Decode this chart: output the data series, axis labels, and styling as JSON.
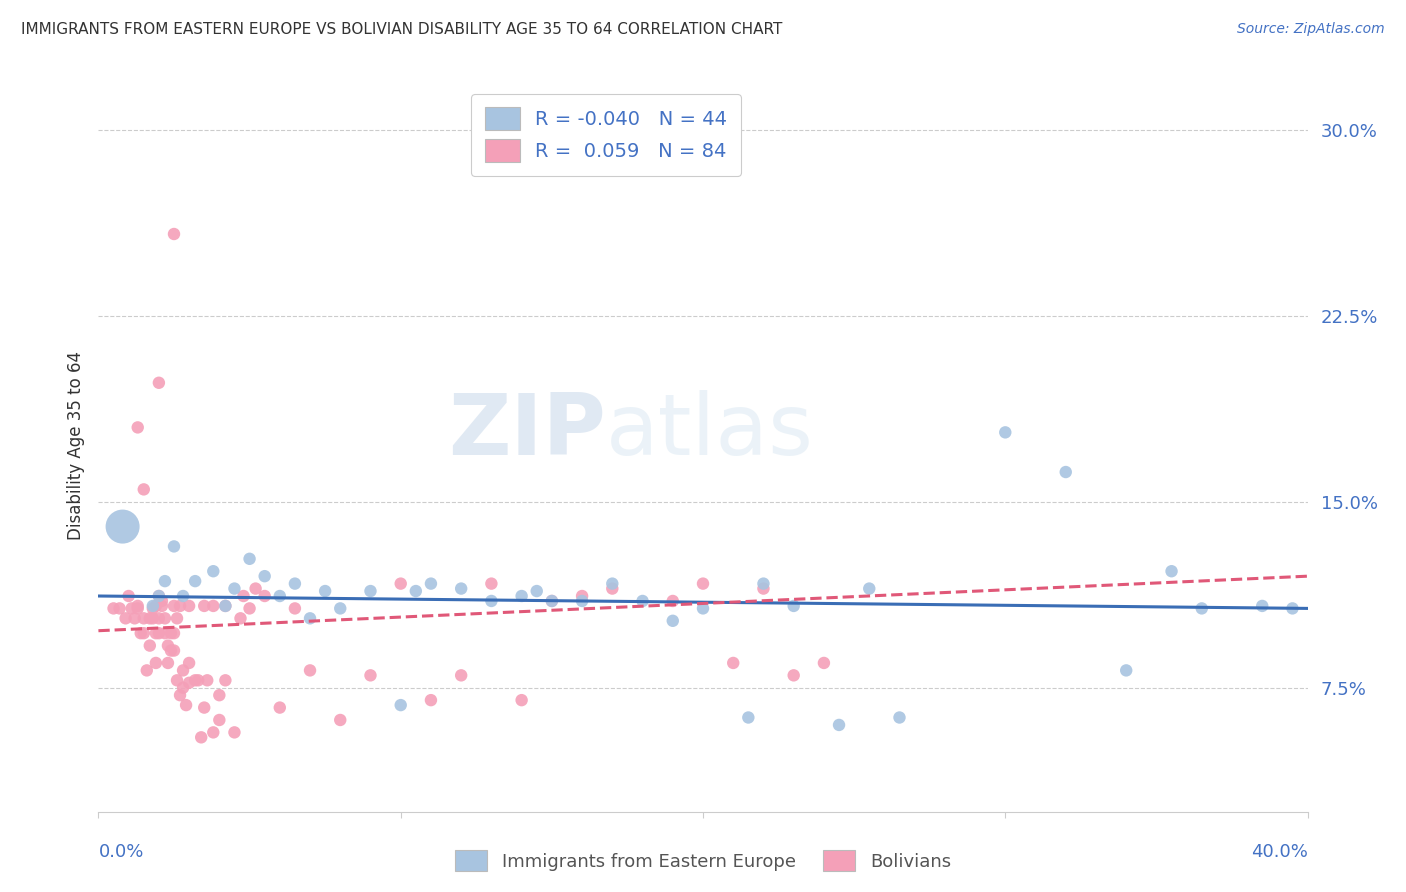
{
  "title": "IMMIGRANTS FROM EASTERN EUROPE VS BOLIVIAN DISABILITY AGE 35 TO 64 CORRELATION CHART",
  "source": "Source: ZipAtlas.com",
  "ylabel": "Disability Age 35 to 64",
  "ytick_labels": [
    "7.5%",
    "15.0%",
    "22.5%",
    "30.0%"
  ],
  "ytick_values": [
    0.075,
    0.15,
    0.225,
    0.3
  ],
  "xlim": [
    0.0,
    0.4
  ],
  "ylim": [
    0.025,
    0.32
  ],
  "blue_R": "-0.040",
  "blue_N": "44",
  "pink_R": "0.059",
  "pink_N": "84",
  "legend_label_blue": "Immigrants from Eastern Europe",
  "legend_label_pink": "Bolivians",
  "blue_color": "#a8c4e0",
  "pink_color": "#f4a0b8",
  "blue_line_color": "#3a6db5",
  "pink_line_color": "#e05878",
  "watermark_1": "ZIP",
  "watermark_2": "atlas",
  "blue_line_x": [
    0.0,
    0.4
  ],
  "blue_line_y": [
    0.112,
    0.107
  ],
  "pink_line_x": [
    0.0,
    0.4
  ],
  "pink_line_y": [
    0.098,
    0.12
  ],
  "blue_scatter_x": [
    0.008,
    0.018,
    0.02,
    0.022,
    0.025,
    0.028,
    0.032,
    0.038,
    0.042,
    0.045,
    0.05,
    0.055,
    0.06,
    0.065,
    0.07,
    0.075,
    0.08,
    0.09,
    0.1,
    0.105,
    0.11,
    0.12,
    0.13,
    0.14,
    0.145,
    0.15,
    0.16,
    0.17,
    0.18,
    0.19,
    0.2,
    0.215,
    0.22,
    0.23,
    0.245,
    0.255,
    0.265,
    0.3,
    0.32,
    0.34,
    0.355,
    0.365,
    0.385,
    0.395
  ],
  "blue_scatter_y": [
    0.14,
    0.108,
    0.112,
    0.118,
    0.132,
    0.112,
    0.118,
    0.122,
    0.108,
    0.115,
    0.127,
    0.12,
    0.112,
    0.117,
    0.103,
    0.114,
    0.107,
    0.114,
    0.068,
    0.114,
    0.117,
    0.115,
    0.11,
    0.112,
    0.114,
    0.11,
    0.11,
    0.117,
    0.11,
    0.102,
    0.107,
    0.063,
    0.117,
    0.108,
    0.06,
    0.115,
    0.063,
    0.178,
    0.162,
    0.082,
    0.122,
    0.107,
    0.108,
    0.107
  ],
  "blue_scatter_size": [
    600,
    80,
    80,
    80,
    80,
    80,
    80,
    80,
    80,
    80,
    80,
    80,
    80,
    80,
    80,
    80,
    80,
    80,
    80,
    80,
    80,
    80,
    80,
    80,
    80,
    80,
    80,
    80,
    80,
    80,
    80,
    80,
    80,
    80,
    80,
    80,
    80,
    80,
    80,
    80,
    80,
    80,
    80,
    80
  ],
  "pink_scatter_x": [
    0.005,
    0.007,
    0.009,
    0.01,
    0.011,
    0.012,
    0.013,
    0.013,
    0.014,
    0.015,
    0.015,
    0.016,
    0.017,
    0.017,
    0.018,
    0.018,
    0.019,
    0.019,
    0.019,
    0.02,
    0.02,
    0.02,
    0.021,
    0.021,
    0.022,
    0.022,
    0.023,
    0.023,
    0.024,
    0.024,
    0.025,
    0.025,
    0.026,
    0.026,
    0.027,
    0.028,
    0.028,
    0.029,
    0.03,
    0.03,
    0.032,
    0.033,
    0.034,
    0.035,
    0.036,
    0.038,
    0.04,
    0.04,
    0.042,
    0.045,
    0.047,
    0.05,
    0.055,
    0.06,
    0.065,
    0.07,
    0.08,
    0.09,
    0.1,
    0.11,
    0.12,
    0.13,
    0.14,
    0.15,
    0.16,
    0.17,
    0.19,
    0.2,
    0.21,
    0.22,
    0.23,
    0.24,
    0.025,
    0.027,
    0.03,
    0.035,
    0.038,
    0.042,
    0.048,
    0.052,
    0.013,
    0.015,
    0.02,
    0.025
  ],
  "pink_scatter_y": [
    0.107,
    0.107,
    0.103,
    0.112,
    0.107,
    0.103,
    0.107,
    0.108,
    0.097,
    0.097,
    0.103,
    0.082,
    0.092,
    0.103,
    0.103,
    0.107,
    0.085,
    0.097,
    0.108,
    0.097,
    0.103,
    0.112,
    0.11,
    0.108,
    0.097,
    0.103,
    0.085,
    0.092,
    0.09,
    0.097,
    0.09,
    0.097,
    0.103,
    0.078,
    0.072,
    0.075,
    0.082,
    0.068,
    0.077,
    0.085,
    0.078,
    0.078,
    0.055,
    0.067,
    0.078,
    0.057,
    0.062,
    0.072,
    0.078,
    0.057,
    0.103,
    0.107,
    0.112,
    0.067,
    0.107,
    0.082,
    0.062,
    0.08,
    0.117,
    0.07,
    0.08,
    0.117,
    0.07,
    0.11,
    0.112,
    0.115,
    0.11,
    0.117,
    0.085,
    0.115,
    0.08,
    0.085,
    0.108,
    0.108,
    0.108,
    0.108,
    0.108,
    0.108,
    0.112,
    0.115,
    0.18,
    0.155,
    0.198,
    0.258
  ]
}
